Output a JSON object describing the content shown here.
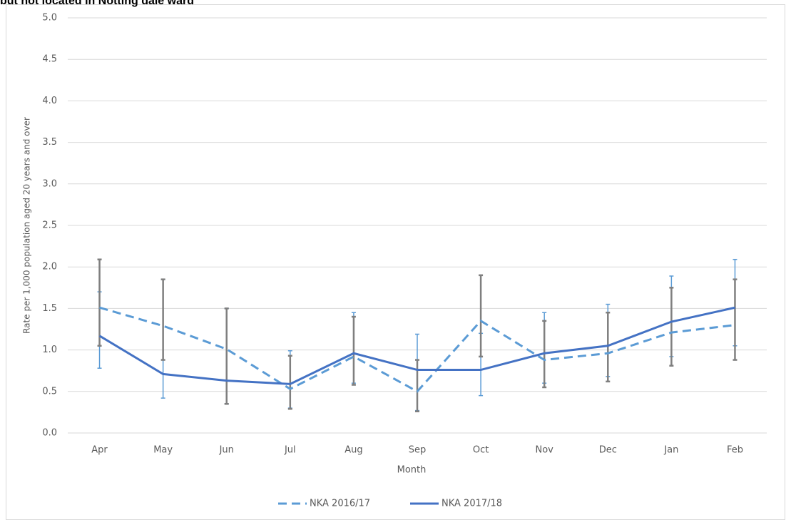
{
  "chart_data": {
    "type": "line",
    "title": "but not located in Notting dale ward",
    "x_label": "Month",
    "y_label": "Rate per 1,000 population aged 20 years and over",
    "categories": [
      "Apr",
      "May",
      "Jun",
      "Jul",
      "Aug",
      "Sep",
      "Oct",
      "Nov",
      "Dec",
      "Jan",
      "Feb"
    ],
    "series": [
      {
        "name": "NKA 2016/17",
        "color": "#5b9bd5",
        "dashed": true,
        "errorbar_color": "#5b9bd5",
        "values": [
          1.51,
          1.29,
          1.01,
          0.53,
          0.92,
          0.5,
          1.35,
          0.88,
          0.96,
          1.21,
          1.3
        ],
        "lower": [
          0.78,
          0.42,
          0.35,
          0.3,
          0.6,
          0.27,
          0.45,
          0.6,
          0.68,
          0.92,
          1.05
        ],
        "upper": [
          1.7,
          1.85,
          1.5,
          0.99,
          1.45,
          1.19,
          1.2,
          1.45,
          1.55,
          1.89,
          2.09
        ]
      },
      {
        "name": "NKA 2017/18",
        "color": "#4472c4",
        "dashed": false,
        "errorbar_color": "#7f7f7f",
        "values": [
          1.17,
          0.71,
          0.63,
          0.59,
          0.96,
          0.76,
          0.76,
          0.96,
          1.05,
          1.34,
          1.51
        ],
        "lower": [
          1.05,
          0.88,
          0.35,
          0.29,
          0.58,
          0.26,
          0.92,
          0.55,
          0.62,
          0.81,
          0.88
        ],
        "upper": [
          2.09,
          1.85,
          1.5,
          0.93,
          1.4,
          0.88,
          1.9,
          1.35,
          1.45,
          1.75,
          1.85
        ]
      }
    ],
    "ylim": [
      0,
      5
    ],
    "yticks": [
      {
        "value": 0,
        "label": "0.0"
      },
      {
        "value": 0.5,
        "label": "0.5"
      },
      {
        "value": 1,
        "label": "1.0"
      },
      {
        "value": 1.5,
        "label": "1.5"
      },
      {
        "value": 2,
        "label": "2.0"
      },
      {
        "value": 2.5,
        "label": "2.5"
      },
      {
        "value": 3,
        "label": "3.0"
      },
      {
        "value": 3.5,
        "label": "3.5"
      },
      {
        "value": 4,
        "label": "4.0"
      },
      {
        "value": 4.5,
        "label": "4.5"
      },
      {
        "value": 5,
        "label": "5.0"
      }
    ],
    "grid": true,
    "legend": "bottom"
  }
}
